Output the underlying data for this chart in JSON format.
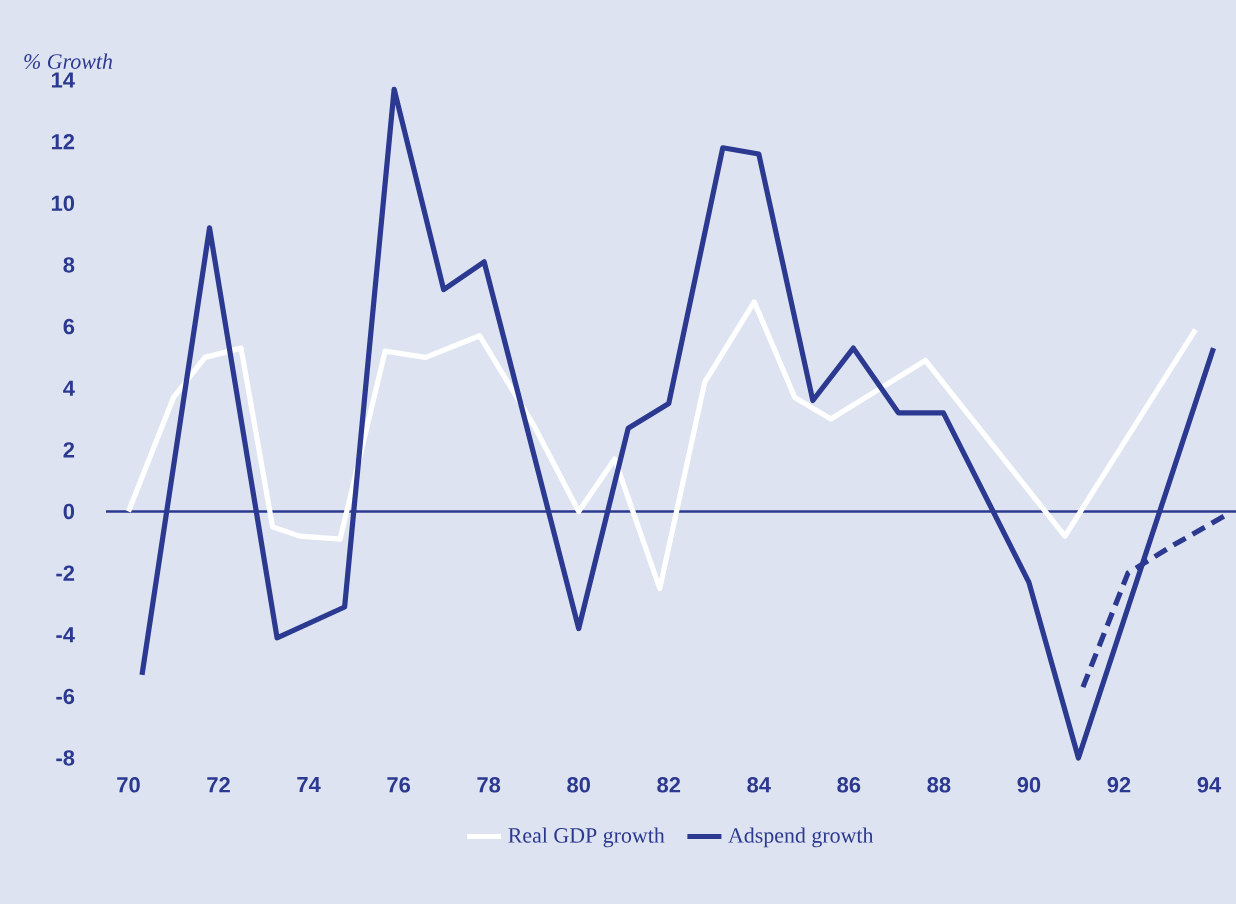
{
  "chart_data": {
    "type": "line",
    "ylabel": "% Growth",
    "xlim": [
      69.5,
      94.6
    ],
    "xticks": [
      70,
      72,
      74,
      76,
      78,
      80,
      82,
      84,
      86,
      88,
      90,
      92,
      94
    ],
    "ylim": [
      -8,
      14
    ],
    "yticks": [
      -8,
      -6,
      -4,
      -2,
      0,
      2,
      4,
      6,
      8,
      10,
      12,
      14
    ],
    "legend": "bottom",
    "marker": "none",
    "ref_lines": [
      {
        "axis": "y",
        "value": 0,
        "color": "#2b3990"
      }
    ],
    "series": [
      {
        "name": "Real GDP growth",
        "color": "#ffffff",
        "line_style": "solid",
        "x": [
          70,
          71,
          71.7,
          72.5,
          73.2,
          73.8,
          74.7,
          75.7,
          76.6,
          77.8,
          79,
          80,
          80.8,
          81.8,
          82.8,
          83.9,
          84.8,
          85.6,
          87.7,
          90.8,
          93.7
        ],
        "values": [
          0,
          3.7,
          5.0,
          5.3,
          -0.5,
          -0.8,
          -0.9,
          5.2,
          5.0,
          5.7,
          2.8,
          0,
          1.7,
          -2.5,
          4.2,
          6.8,
          3.7,
          3.0,
          4.9,
          -0.8,
          5.9
        ]
      },
      {
        "name": "Adspend growth",
        "color": "#2b3990",
        "line_style": "solid",
        "x": [
          70.3,
          71.8,
          73.3,
          74.8,
          75.9,
          77.0,
          77.9,
          80.0,
          81.1,
          82.0,
          83.2,
          84.0,
          85.2,
          86.1,
          87.1,
          88.1,
          90.0,
          91.1,
          94.1
        ],
        "values": [
          -5.3,
          9.2,
          -4.1,
          -3.1,
          13.7,
          7.2,
          8.1,
          -3.8,
          2.7,
          3.5,
          11.8,
          11.6,
          3.6,
          5.3,
          3.2,
          3.2,
          -2.3,
          -8.0,
          5.3
        ]
      },
      {
        "color": "#2b3990",
        "line_style": "dashed",
        "x": [
          91.2,
          92.2,
          93.2,
          94.4
        ],
        "values": [
          -5.7,
          -2.0,
          -1.1,
          -0.1
        ]
      }
    ]
  }
}
